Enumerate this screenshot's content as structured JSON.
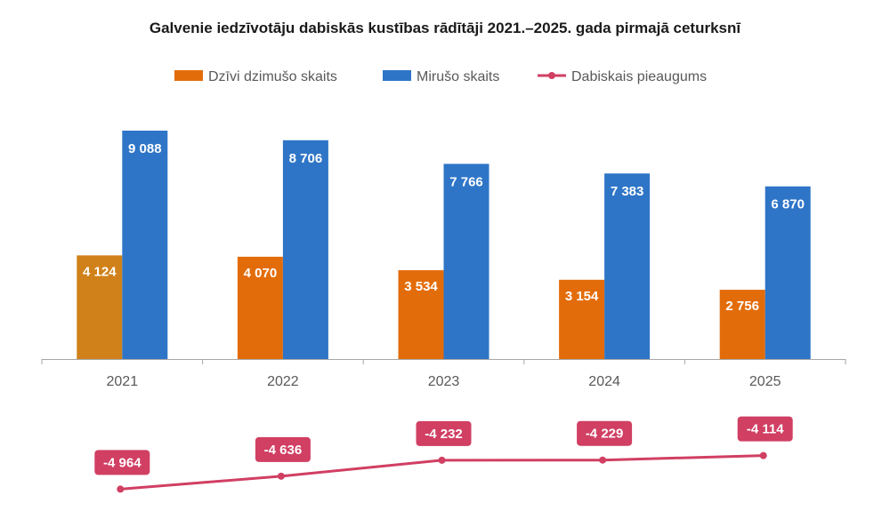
{
  "title": "Galvenie iedzīvotāju dabiskās kustības rādītāji 2021.–2025. gada pirmajā ceturksnī",
  "colors": {
    "births": "#E36C0A",
    "births_highlight": "#D0811A",
    "deaths": "#2E75C7",
    "growth": "#D13F63",
    "axis": "#A6A6A6",
    "text": "#595959"
  },
  "chart_data": {
    "type": "bar",
    "categories": [
      "2021",
      "2022",
      "2023",
      "2024",
      "2025"
    ],
    "series": [
      {
        "name": "Dzīvi dzimušo skaits",
        "type": "bar",
        "values": [
          4124,
          4070,
          3534,
          3154,
          2756
        ],
        "labels": [
          "4 124",
          "4 070",
          "3 534",
          "3 154",
          "2 756"
        ]
      },
      {
        "name": "Mirušo skaits",
        "type": "bar",
        "values": [
          9088,
          8706,
          7766,
          7383,
          6870
        ],
        "labels": [
          "9 088",
          "8 706",
          "7 766",
          "7 383",
          "6 870"
        ]
      },
      {
        "name": "Dabiskais pieaugums",
        "type": "line",
        "values": [
          -4964,
          -4636,
          -4232,
          -4229,
          -4114
        ],
        "labels": [
          "-4 964",
          "-4 636",
          "-4 232",
          "-4 229",
          "-4 114"
        ]
      }
    ],
    "ylim": [
      0,
      9088
    ],
    "line_ylim": [
      -5000,
      -4100
    ],
    "legend_position": "top",
    "grid": false
  }
}
